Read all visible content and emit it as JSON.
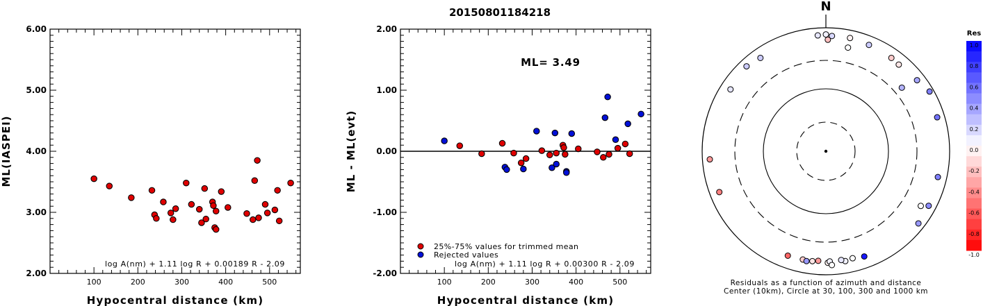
{
  "title": "20150801184218",
  "chart_data": [
    {
      "type": "scatter",
      "xlabel": "Hypocentral distance (km)",
      "ylabel": "ML(IASPEI)",
      "xlim": [
        0,
        570
      ],
      "ylim": [
        2.0,
        6.0
      ],
      "x_ticks": [
        "100",
        "200",
        "300",
        "400",
        "500"
      ],
      "y_ticks": [
        "2.00",
        "3.00",
        "4.00",
        "5.00",
        "6.00"
      ],
      "grid": false,
      "formula": "log A(nm) + 1.11 log R + 0.00189 R - 2.09",
      "points": [
        {
          "x": 100,
          "y": 3.55
        },
        {
          "x": 135,
          "y": 3.43
        },
        {
          "x": 185,
          "y": 3.24
        },
        {
          "x": 232,
          "y": 3.36
        },
        {
          "x": 238,
          "y": 2.96
        },
        {
          "x": 242,
          "y": 2.9
        },
        {
          "x": 258,
          "y": 3.17
        },
        {
          "x": 275,
          "y": 2.99
        },
        {
          "x": 280,
          "y": 2.88
        },
        {
          "x": 286,
          "y": 3.06
        },
        {
          "x": 310,
          "y": 3.48
        },
        {
          "x": 322,
          "y": 3.13
        },
        {
          "x": 340,
          "y": 3.05
        },
        {
          "x": 345,
          "y": 2.83
        },
        {
          "x": 352,
          "y": 3.39
        },
        {
          "x": 355,
          "y": 2.89
        },
        {
          "x": 370,
          "y": 3.17
        },
        {
          "x": 372,
          "y": 3.11
        },
        {
          "x": 375,
          "y": 2.75
        },
        {
          "x": 378,
          "y": 3.02
        },
        {
          "x": 378,
          "y": 2.72
        },
        {
          "x": 390,
          "y": 3.34
        },
        {
          "x": 405,
          "y": 3.08
        },
        {
          "x": 448,
          "y": 2.98
        },
        {
          "x": 462,
          "y": 2.88
        },
        {
          "x": 466,
          "y": 3.52
        },
        {
          "x": 472,
          "y": 3.85
        },
        {
          "x": 475,
          "y": 2.91
        },
        {
          "x": 490,
          "y": 3.13
        },
        {
          "x": 495,
          "y": 2.99
        },
        {
          "x": 512,
          "y": 3.04
        },
        {
          "x": 518,
          "y": 3.36
        },
        {
          "x": 522,
          "y": 2.86
        },
        {
          "x": 548,
          "y": 3.48
        }
      ]
    },
    {
      "type": "scatter",
      "xlabel": "Hypocentral distance (km)",
      "ylabel": "ML - ML(evt)",
      "xlim": [
        0,
        570
      ],
      "ylim": [
        -2.0,
        2.0
      ],
      "x_ticks": [
        "100",
        "200",
        "300",
        "400",
        "500"
      ],
      "y_ticks": [
        "-2.00",
        "-1.00",
        "0.00",
        "1.00",
        "2.00"
      ],
      "grid": false,
      "reference_line_y": 0.0,
      "annotation": "ML= 3.49",
      "formula": "log A(nm) + 1.11 log R + 0.00300 R - 2.09",
      "legend": [
        "25%-75% values for trimmed mean",
        "Rejected values"
      ],
      "legend_position": "bottom-left",
      "colors": {
        "used": "#e00000",
        "rejected": "#0010d8"
      },
      "series": [
        {
          "name": "25%-75% values for trimmed mean",
          "points": [
            {
              "x": 135,
              "y": 0.09
            },
            {
              "x": 185,
              "y": -0.04
            },
            {
              "x": 232,
              "y": 0.13
            },
            {
              "x": 258,
              "y": -0.03
            },
            {
              "x": 275,
              "y": -0.19
            },
            {
              "x": 286,
              "y": -0.12
            },
            {
              "x": 322,
              "y": 0.01
            },
            {
              "x": 340,
              "y": -0.06
            },
            {
              "x": 355,
              "y": -0.03
            },
            {
              "x": 370,
              "y": 0.1
            },
            {
              "x": 372,
              "y": 0.06
            },
            {
              "x": 375,
              "y": -0.05
            },
            {
              "x": 405,
              "y": 0.04
            },
            {
              "x": 448,
              "y": -0.01
            },
            {
              "x": 462,
              "y": -0.1
            },
            {
              "x": 475,
              "y": -0.05
            },
            {
              "x": 495,
              "y": 0.05
            },
            {
              "x": 512,
              "y": 0.12
            },
            {
              "x": 522,
              "y": -0.04
            }
          ]
        },
        {
          "name": "Rejected values",
          "points": [
            {
              "x": 100,
              "y": 0.17
            },
            {
              "x": 238,
              "y": -0.26
            },
            {
              "x": 242,
              "y": -0.3
            },
            {
              "x": 280,
              "y": -0.29
            },
            {
              "x": 310,
              "y": 0.33
            },
            {
              "x": 345,
              "y": -0.27
            },
            {
              "x": 352,
              "y": 0.3
            },
            {
              "x": 355,
              "y": -0.21
            },
            {
              "x": 378,
              "y": -0.33
            },
            {
              "x": 378,
              "y": -0.35
            },
            {
              "x": 390,
              "y": 0.29
            },
            {
              "x": 466,
              "y": 0.55
            },
            {
              "x": 472,
              "y": 0.89
            },
            {
              "x": 490,
              "y": 0.19
            },
            {
              "x": 518,
              "y": 0.45
            },
            {
              "x": 548,
              "y": 0.61
            }
          ]
        }
      ]
    },
    {
      "type": "scatter",
      "subtype": "polar",
      "north_label": "N",
      "caption_line1": "Residuals as a function of azimuth and distance",
      "caption_line2": "Center (10km), Circle at 30, 100, 300 and 1000 km",
      "rings_km": [
        30,
        100,
        300,
        1000
      ],
      "colorbar_title": "Res",
      "colorbar_ticks": [
        "1.0",
        "0.8",
        "0.6",
        "0.4",
        "0.2",
        "0.0",
        "-0.2",
        "-0.4",
        "-0.6",
        "-0.8",
        "-1.0"
      ],
      "points": [
        {
          "azimuth": 3,
          "distance_km": 740,
          "residual": 0.15
        },
        {
          "azimuth": 0,
          "distance_km": 780,
          "residual": 0.05
        },
        {
          "azimuth": -4,
          "distance_km": 760,
          "residual": 0.1
        },
        {
          "azimuth": 12,
          "distance_km": 750,
          "residual": -0.05
        },
        {
          "azimuth": 22,
          "distance_km": 720,
          "residual": 0.2
        },
        {
          "azimuth": 35,
          "distance_km": 700,
          "residual": -0.2
        },
        {
          "azimuth": 40,
          "distance_km": 680,
          "residual": -0.1
        },
        {
          "azimuth": 1,
          "distance_km": 640,
          "residual": -0.25
        },
        {
          "azimuth": 12,
          "distance_km": 520,
          "residual": 0.0
        },
        {
          "azimuth": 52,
          "distance_km": 740,
          "residual": 0.35
        },
        {
          "azimuth": 60,
          "distance_km": 860,
          "residual": 0.5
        },
        {
          "azimuth": 50,
          "distance_km": 400,
          "residual": 0.3
        },
        {
          "azimuth": 73,
          "distance_km": 760,
          "residual": 0.55
        },
        {
          "azimuth": 103,
          "distance_km": 720,
          "residual": 0.5
        },
        {
          "azimuth": 120,
          "distance_km": 590,
          "residual": 0.0
        },
        {
          "azimuth": 118,
          "distance_km": 760,
          "residual": 0.45
        },
        {
          "azimuth": 128,
          "distance_km": 790,
          "residual": 0.4
        },
        {
          "azimuth": -43,
          "distance_km": 760,
          "residual": 0.2
        },
        {
          "azimuth": -35,
          "distance_km": 700,
          "residual": 0.2
        },
        {
          "azimuth": -57,
          "distance_km": 690,
          "residual": 0.1
        },
        {
          "azimuth": -94,
          "distance_km": 760,
          "residual": -0.4
        },
        {
          "azimuth": -111,
          "distance_km": 700,
          "residual": -0.5
        },
        {
          "azimuth": -160,
          "distance_km": 630,
          "residual": -0.6
        },
        {
          "azimuth": -168,
          "distance_km": 620,
          "residual": -0.2
        },
        {
          "azimuth": -170,
          "distance_km": 640,
          "residual": 0.4
        },
        {
          "azimuth": -173,
          "distance_km": 620,
          "residual": -0.1
        },
        {
          "azimuth": -176,
          "distance_km": 600,
          "residual": -0.4
        },
        {
          "azimuth": 179,
          "distance_km": 640,
          "residual": -0.05
        },
        {
          "azimuth": 178,
          "distance_km": 610,
          "residual": 0.05
        },
        {
          "azimuth": 177,
          "distance_km": 700,
          "residual": 0.0
        },
        {
          "azimuth": 170,
          "distance_km": 640,
          "residual": 0.05
        },
        {
          "azimuth": 166,
          "distance_km": 610,
          "residual": 0.0
        },
        {
          "azimuth": 160,
          "distance_km": 650,
          "residual": 0.9
        },
        {
          "azimuth": 172,
          "distance_km": 600,
          "residual": 0.1
        }
      ]
    }
  ]
}
